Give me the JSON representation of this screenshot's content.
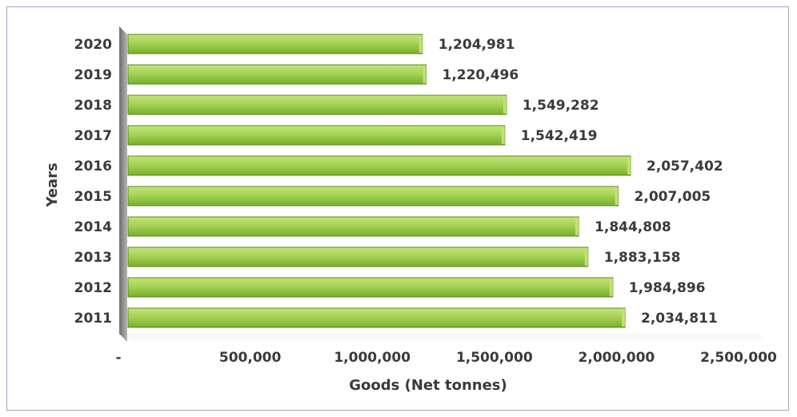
{
  "chart_data": {
    "type": "bar",
    "orientation": "horizontal",
    "title": "",
    "xlabel": "Goods (Net tonnes)",
    "ylabel": "Years",
    "categories": [
      "2020",
      "2019",
      "2018",
      "2017",
      "2016",
      "2015",
      "2014",
      "2013",
      "2012",
      "2011"
    ],
    "values": [
      1204981,
      1220496,
      1549282,
      1542419,
      2057402,
      2007005,
      1844808,
      1883158,
      1984896,
      2034811
    ],
    "data_labels": [
      "1,204,981",
      "1,220,496",
      "1,549,282",
      "1,542,419",
      "2,057,402",
      "2,007,005",
      "1,844,808",
      "1,883,158",
      "1,984,896",
      "2,034,811"
    ],
    "xlim": [
      0,
      2500000
    ],
    "x_ticks": [
      0,
      500000,
      1000000,
      1500000,
      2000000,
      2500000
    ],
    "x_tick_labels": [
      "-",
      "500,000",
      "1,000,000",
      "1,500,000",
      "2,000,000",
      "2,500,000"
    ],
    "grid": false,
    "legend": "none",
    "colors": {
      "bar_fill": "#8dc63f",
      "bar_light": "#c4e37a",
      "bar_edge": "#5a8a1e",
      "text": "#3a3a3a",
      "axis_wall": "#8c8c8c",
      "frame_border": "#9aa9bf"
    }
  }
}
